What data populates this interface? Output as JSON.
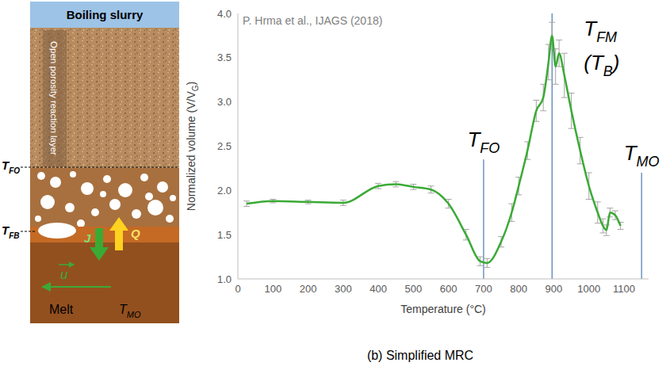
{
  "caption": "(b) Simplified MRC",
  "diagram": {
    "layers": [
      "Boiling slurry",
      "Open porosity reaction layer"
    ],
    "boundaries": [
      {
        "main": "T",
        "sub": "FO"
      },
      {
        "main": "T",
        "sub": "FB"
      }
    ],
    "fluxes": {
      "mass": "J",
      "heat": "Q"
    },
    "velocity": "u",
    "melt": {
      "label": "Melt",
      "temperature": {
        "main": "T",
        "sub": "MO"
      }
    }
  },
  "chart_data": {
    "type": "line",
    "source": "P. Hrma et al., IJAGS (2018)",
    "xlabel": "Temperature (°C)",
    "ylabel": {
      "text": "Normalized volume (V/V",
      "sub": "G",
      "after": ")"
    },
    "x": [
      25,
      100,
      200,
      300,
      400,
      450,
      500,
      550,
      600,
      650,
      690,
      710,
      750,
      780,
      800,
      825,
      850,
      870,
      885,
      895,
      905,
      915,
      930,
      950,
      975,
      1000,
      1025,
      1040,
      1050,
      1060,
      1075,
      1090
    ],
    "values": [
      1.85,
      1.88,
      1.87,
      1.86,
      2.05,
      2.07,
      2.04,
      2.01,
      1.85,
      1.5,
      1.2,
      1.18,
      1.42,
      1.75,
      2.05,
      2.45,
      2.9,
      3.05,
      3.45,
      3.75,
      3.4,
      3.55,
      3.3,
      2.9,
      2.45,
      2.05,
      1.75,
      1.6,
      1.55,
      1.75,
      1.72,
      1.6
    ],
    "errors": [
      0.03,
      0.02,
      0.02,
      0.03,
      0.03,
      0.03,
      0.03,
      0.04,
      0.05,
      0.06,
      0.05,
      0.05,
      0.06,
      0.1,
      0.1,
      0.1,
      0.12,
      0.15,
      0.2,
      0.15,
      0.2,
      0.15,
      0.25,
      0.2,
      0.15,
      0.15,
      0.12,
      0.08,
      0.06,
      0.05,
      0.05,
      0.04
    ],
    "color": "#3aaa35",
    "marker": "none",
    "line_style": "solid",
    "grid": false,
    "xlim": [
      0,
      1170
    ],
    "xticks": [
      0,
      100,
      200,
      300,
      400,
      500,
      600,
      700,
      800,
      900,
      1000,
      1100
    ],
    "ylim": [
      1.0,
      4.0
    ],
    "yticks": [
      {
        "value": 1.0,
        "label": "1.0"
      },
      {
        "value": 1.5,
        "label": "1.5"
      },
      {
        "value": 2.0,
        "label": "2.0"
      },
      {
        "value": 2.5,
        "label": "2.5"
      },
      {
        "value": 3.0,
        "label": "3.0"
      },
      {
        "value": 3.5,
        "label": "3.5"
      },
      {
        "value": 4.0,
        "label": "4.0"
      }
    ],
    "vlines": [
      {
        "label": {
          "main": "T",
          "sub": "FO"
        },
        "x": 700,
        "ymax": 2.35
      },
      {
        "label": {
          "main": "T",
          "sub": "FM"
        },
        "label2": {
          "main": "(T",
          "sub": "B",
          "after": ")"
        },
        "x": 895,
        "ymax": 4.0
      },
      {
        "label": {
          "main": "T",
          "sub": "MO"
        },
        "x": 1150,
        "ymax": 2.2
      }
    ]
  }
}
